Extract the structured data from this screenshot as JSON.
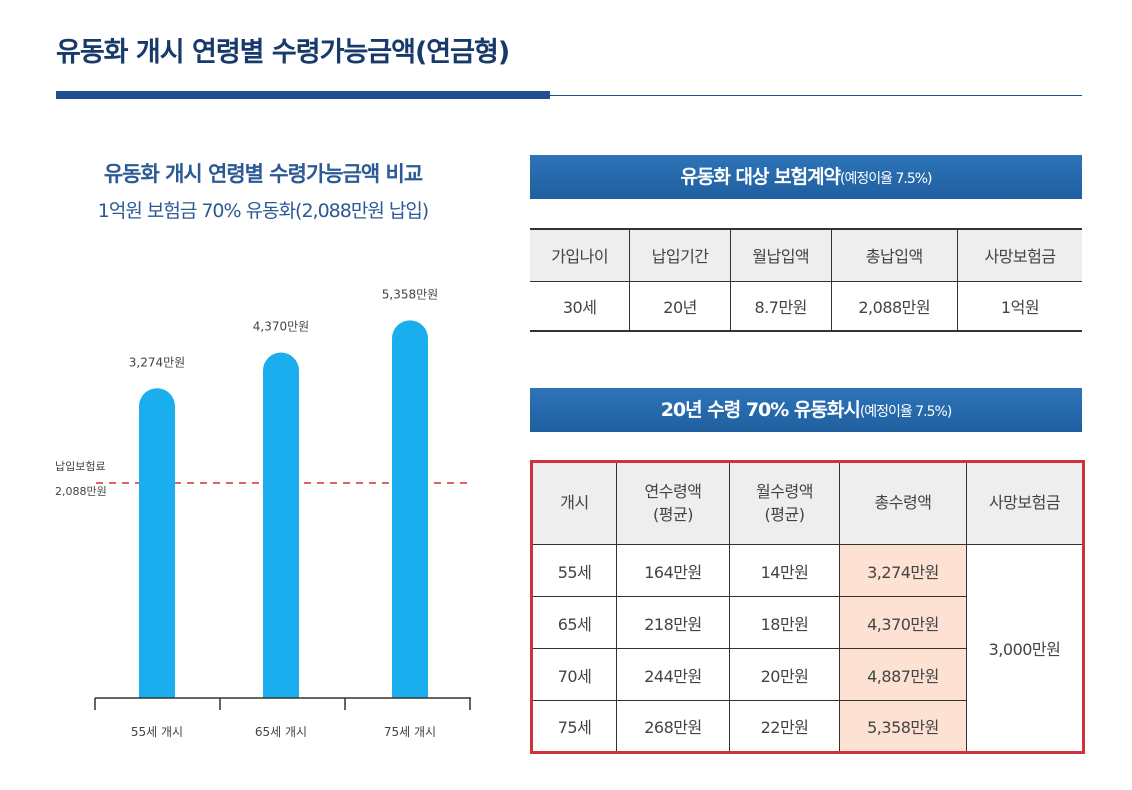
{
  "title": "유동화 개시 연령별 수령가능금액(연금형)",
  "chart_data": {
    "type": "bar",
    "title": "유동화 개시 연령별 수령가능금액 비교",
    "subtitle": "1억원 보험금 70% 유동화(2,088만원 납입)",
    "categories": [
      "55세 개시",
      "65세 개시",
      "75세 개시"
    ],
    "values": [
      3274,
      4370,
      5358
    ],
    "value_labels": [
      "3,274만원",
      "4,370만원",
      "5,358만원"
    ],
    "unit": "만원",
    "reference_line": {
      "value": 2088,
      "label_line1": "납입보험료",
      "label_line2": "2,088만원",
      "color": "#d0323c",
      "style": "dashed"
    },
    "bar_color": "#1aaeee",
    "grid": false
  },
  "contract": {
    "banner_main": "유동화 대상 보험계약",
    "banner_note": "(예정이율 7.5%)",
    "headers": [
      "가입나이",
      "납입기간",
      "월납입액",
      "총납입액",
      "사망보험금"
    ],
    "row": [
      "30세",
      "20년",
      "8.7만원",
      "2,088만원",
      "1억원"
    ]
  },
  "payout": {
    "banner_main": "20년 수령 70% 유동화시",
    "banner_note": "(예정이율 7.5%)",
    "headers": [
      "개시",
      "연수령액\n(평균)",
      "월수령액\n(평균)",
      "총수령액",
      "사망보험금"
    ],
    "headers_line1": [
      "개시",
      "연수령액",
      "월수령액",
      "총수령액",
      "사망보험금"
    ],
    "headers_line2": [
      "",
      "(평균)",
      "(평균)",
      "",
      ""
    ],
    "rows": [
      [
        "55세",
        "164만원",
        "14만원",
        "3,274만원"
      ],
      [
        "65세",
        "218만원",
        "18만원",
        "4,370만원"
      ],
      [
        "70세",
        "244만원",
        "20만원",
        "4,887만원"
      ],
      [
        "75세",
        "268만원",
        "22만원",
        "5,358만원"
      ]
    ],
    "death_benefit": "3,000만원",
    "highlight_color": "#fde1d3",
    "border_color": "#d0323c"
  }
}
